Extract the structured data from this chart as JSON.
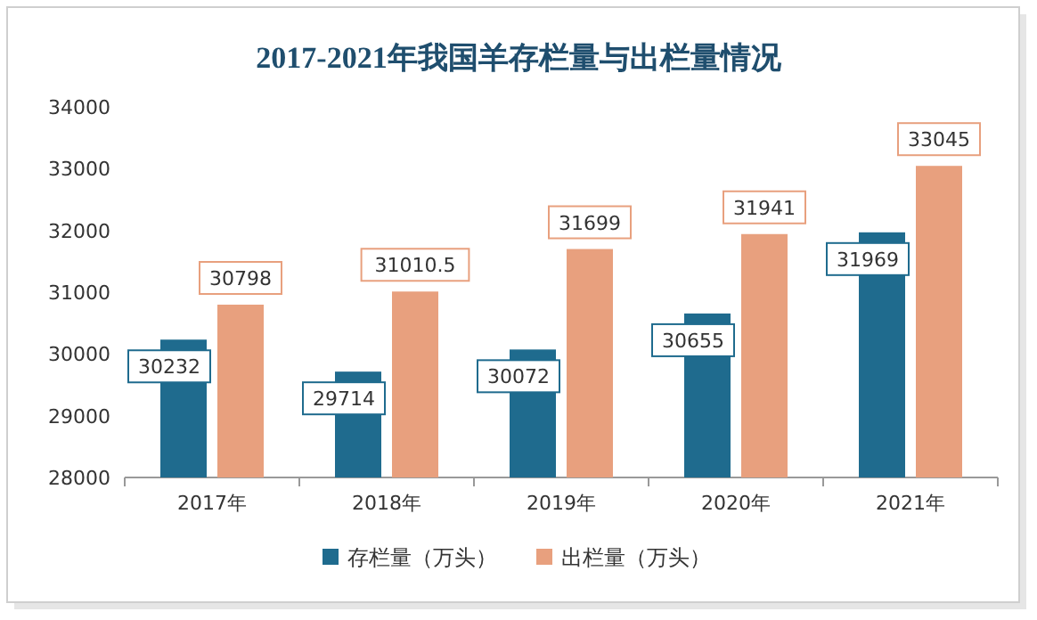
{
  "chart_data": {
    "type": "bar",
    "title": "2017-2021年我国羊存栏量与出栏量情况",
    "categories": [
      "2017年",
      "2018年",
      "2019年",
      "2020年",
      "2021年"
    ],
    "series": [
      {
        "name": "存栏量（万头）",
        "color": "#1f6b8e",
        "values": [
          30232,
          29714,
          30072,
          30655,
          31969
        ]
      },
      {
        "name": "出栏量（万头）",
        "color": "#e8a07e",
        "values": [
          30798,
          31010.5,
          31699,
          31941,
          33045
        ]
      }
    ],
    "ylim": [
      28000,
      34000
    ],
    "yticks": [
      28000,
      29000,
      30000,
      31000,
      32000,
      33000,
      34000
    ],
    "data_labels": true,
    "legend": "bottom"
  }
}
